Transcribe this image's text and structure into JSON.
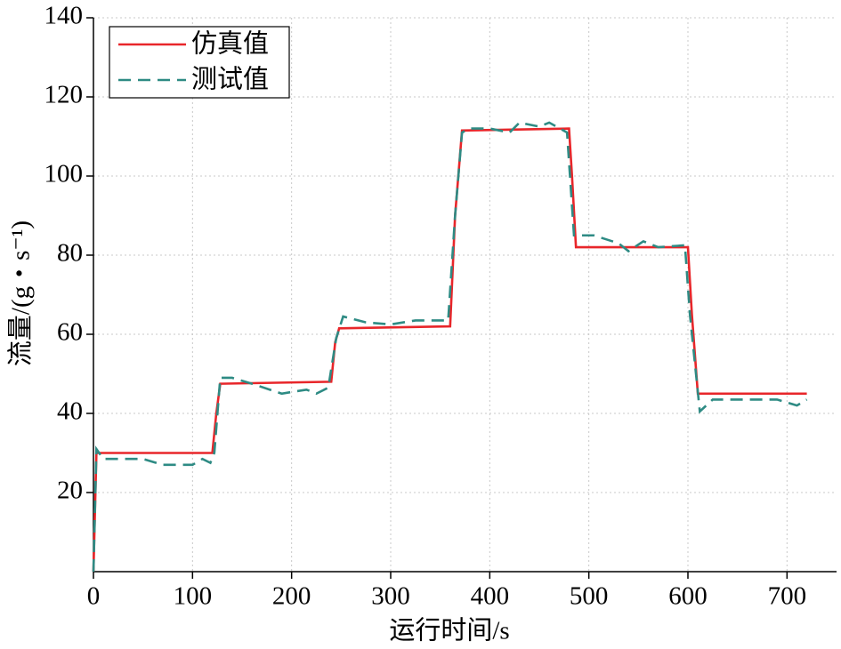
{
  "chart_data": {
    "type": "line",
    "x_label": "运行时间/s",
    "y_label": "流量/(g・s⁻¹)",
    "xlim": [
      0,
      750
    ],
    "xticks": [
      0,
      100,
      200,
      300,
      400,
      500,
      600,
      700
    ],
    "ylim": [
      0,
      140
    ],
    "yticks": [
      20,
      40,
      60,
      80,
      100,
      120,
      140
    ],
    "grid": true,
    "legend": "upper left",
    "series": [
      {
        "name": "仿真值",
        "color": "#e8262a",
        "dash": "solid",
        "x": [
          0,
          3,
          120,
          124,
          128,
          240,
          244,
          248,
          360,
          365,
          372,
          480,
          483,
          487,
          600,
          604,
          610,
          720
        ],
        "values": [
          0,
          30,
          30,
          40,
          47.5,
          48,
          58,
          61.5,
          62,
          90,
          111.5,
          112,
          100,
          82,
          82,
          65,
          45,
          45
        ]
      },
      {
        "name": "测试值",
        "color": "#2e8b84",
        "dash": "dashed",
        "x": [
          0,
          3,
          10,
          50,
          70,
          100,
          110,
          118,
          122,
          128,
          140,
          160,
          190,
          215,
          225,
          237,
          245,
          252,
          275,
          300,
          325,
          358,
          365,
          372,
          380,
          400,
          420,
          430,
          450,
          460,
          478,
          485,
          505,
          530,
          540,
          555,
          570,
          597,
          602,
          612,
          625,
          690,
          710,
          720
        ],
        "values": [
          0,
          31,
          28.5,
          28.5,
          27,
          27,
          28.5,
          27.5,
          30,
          49,
          49,
          47.5,
          45,
          46,
          45,
          46.5,
          59,
          64.5,
          63,
          62.5,
          63.5,
          63.5,
          90,
          111,
          112,
          112,
          111,
          113.5,
          112.5,
          113.5,
          111,
          85,
          85,
          83,
          81,
          83.5,
          82,
          82.5,
          65,
          40.5,
          43.5,
          43.5,
          42,
          43.5
        ]
      }
    ]
  }
}
